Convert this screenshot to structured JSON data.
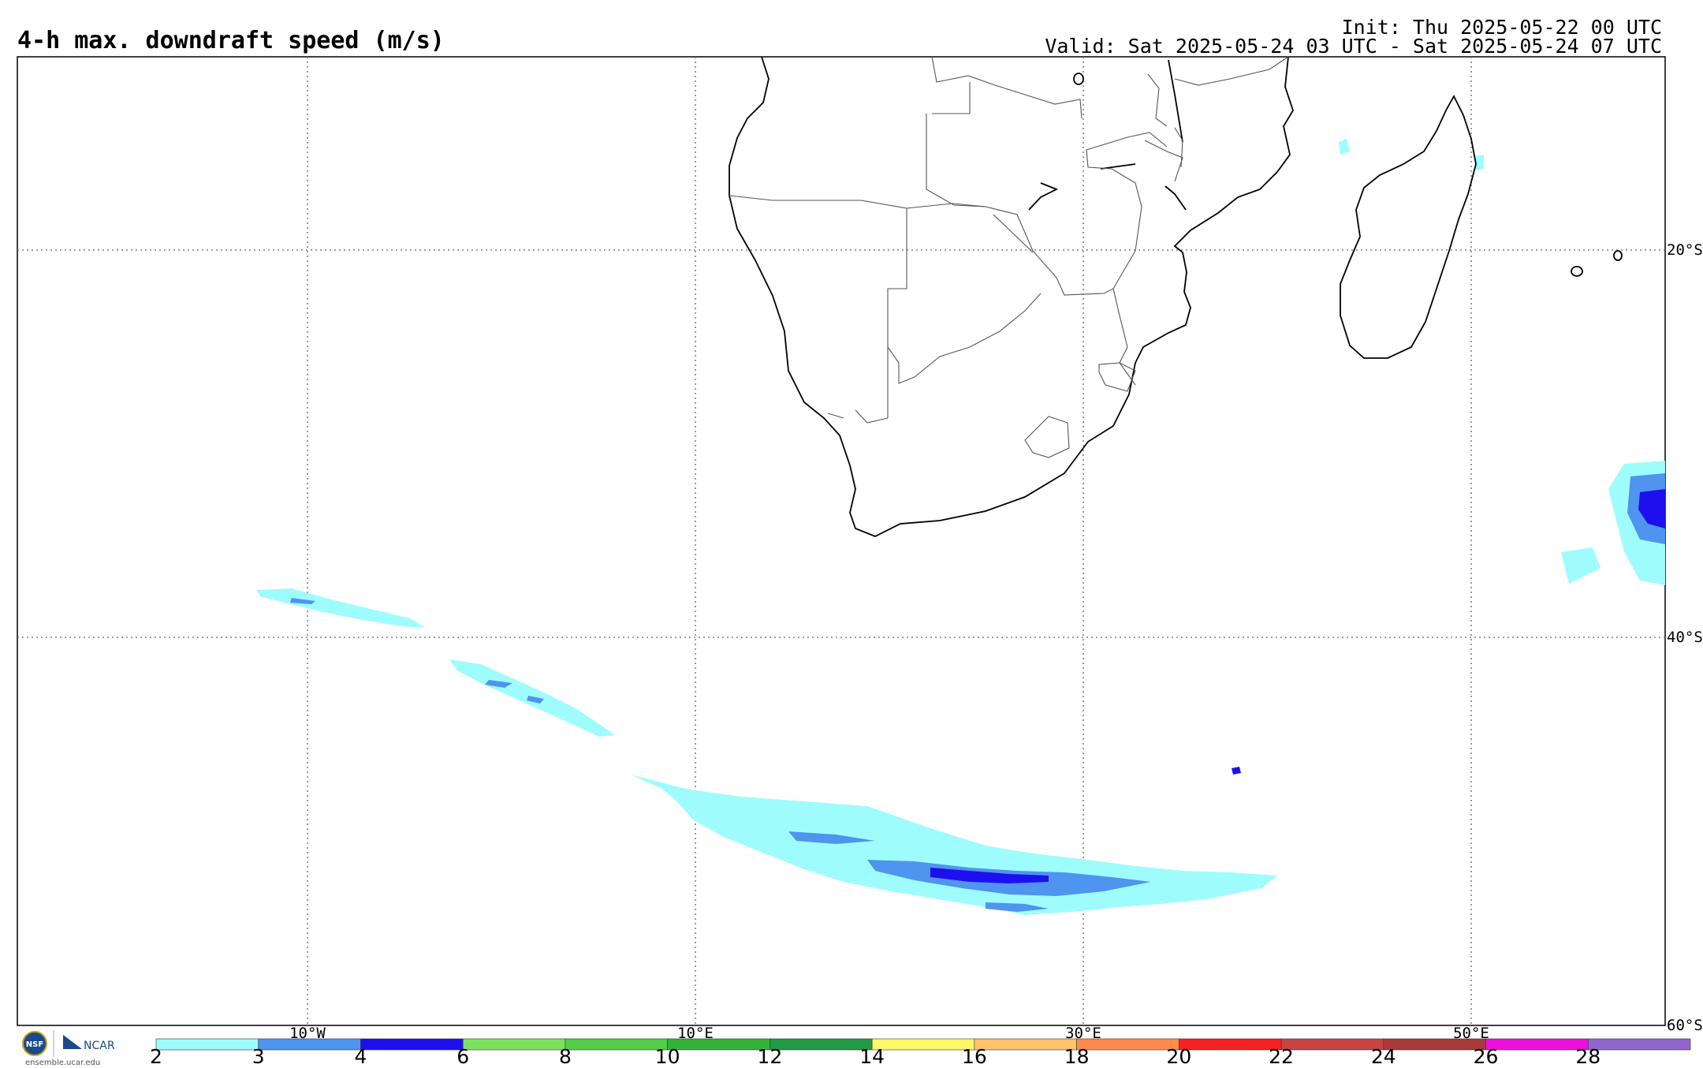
{
  "header": {
    "title": "4-h max. downdraft speed (m/s)",
    "init": "Init: Thu 2025-05-22 00 UTC",
    "valid": "Valid: Sat 2025-05-24 03 UTC - Sat 2025-05-24 07 UTC"
  },
  "map": {
    "lat_labels": [
      "20°S",
      "40°S",
      "60°S"
    ],
    "lon_labels": [
      "10°W",
      "10°E",
      "30°E",
      "50°E"
    ]
  },
  "colorbar": {
    "ticks": [
      "2",
      "3",
      "4",
      "6",
      "8",
      "10",
      "12",
      "14",
      "16",
      "18",
      "20",
      "22",
      "24",
      "26",
      "28"
    ],
    "colors": [
      "#9ffcfc",
      "#4f94ee",
      "#1e10ee",
      "#7ee15e",
      "#55cc4a",
      "#36b23a",
      "#229944",
      "#fff76a",
      "#ffc36b",
      "#ff8a4f",
      "#f72222",
      "#c64442",
      "#a83a3a",
      "#ee11dd",
      "#9166cc"
    ]
  },
  "logos": {
    "nsf": "NSF",
    "ncar": "NCAR",
    "site": "ensemble.ucar.edu"
  }
}
